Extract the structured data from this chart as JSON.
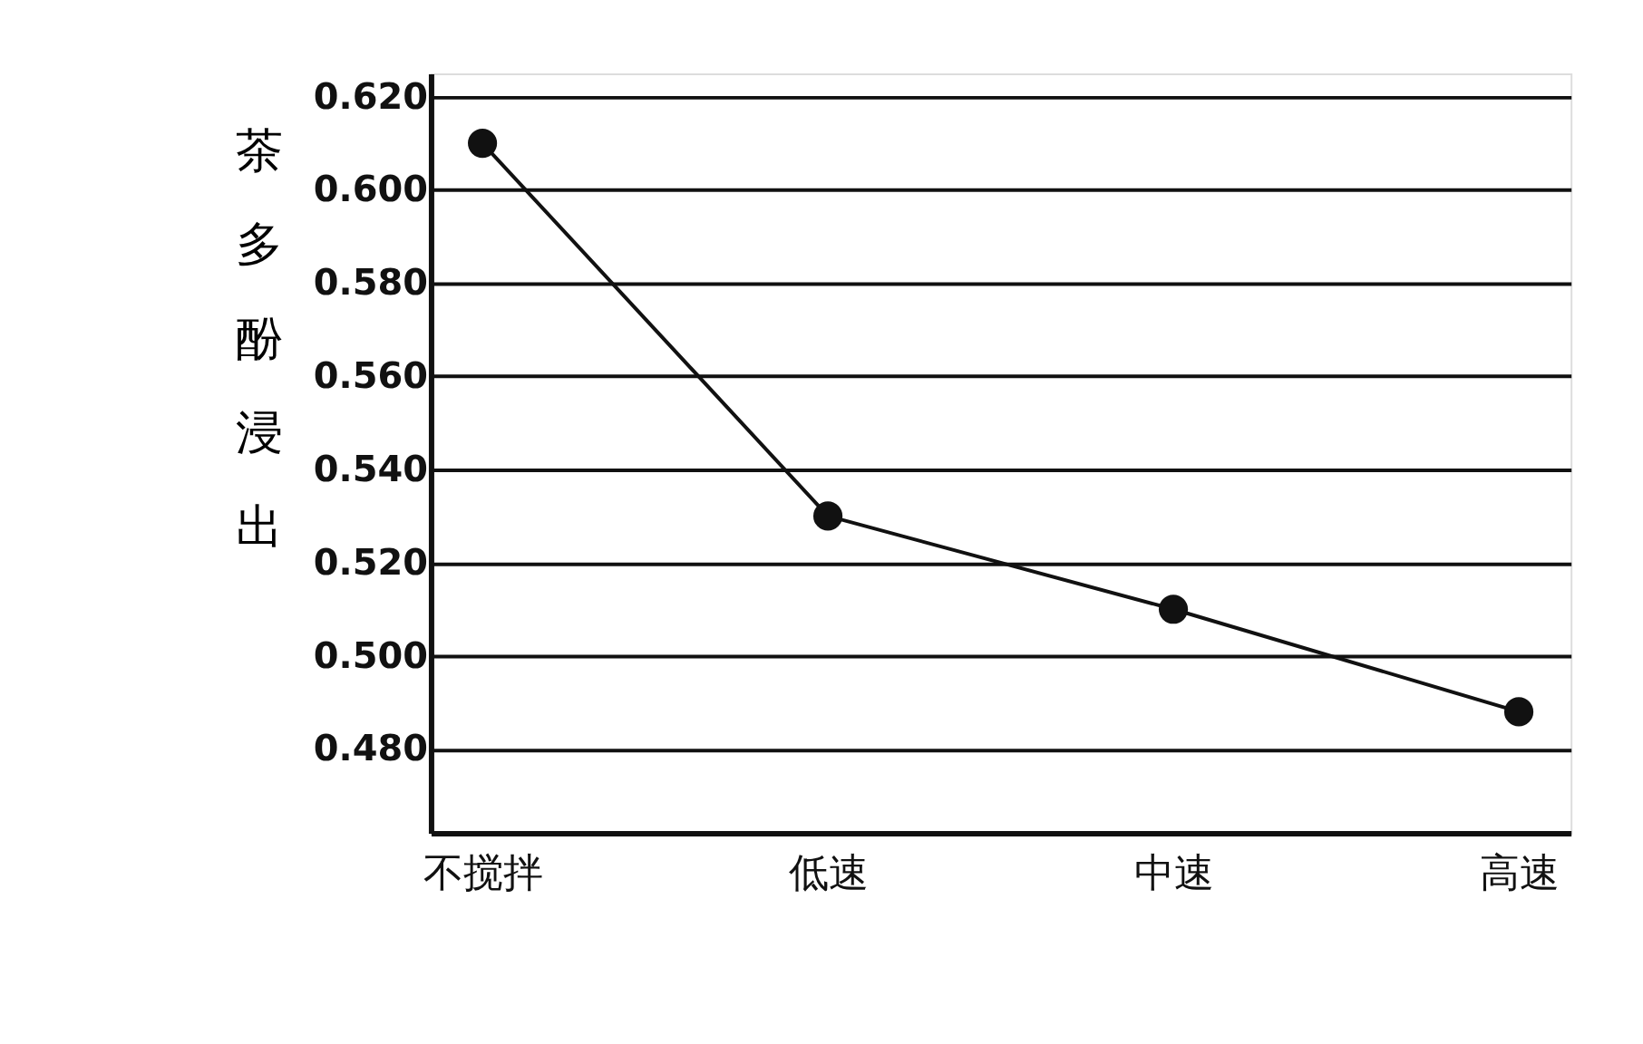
{
  "chart_data": {
    "type": "line",
    "ylabel": "茶多酚浸出",
    "categories": [
      "不搅拌",
      "低速",
      "中速",
      "高速"
    ],
    "series": [
      {
        "color": "#111111",
        "values": [
          0.61,
          0.53,
          0.51,
          0.488
        ]
      }
    ],
    "ylim": [
      0.462,
      0.625
    ],
    "yticks": [
      {
        "value": 0.48,
        "label": "0.480"
      },
      {
        "value": 0.5,
        "label": "0.500"
      },
      {
        "value": 0.52,
        "label": "0.520"
      },
      {
        "value": 0.54,
        "label": "0.540"
      },
      {
        "value": 0.56,
        "label": "0.560"
      },
      {
        "value": 0.58,
        "label": "0.580"
      },
      {
        "value": 0.6,
        "label": "0.600"
      },
      {
        "value": 0.62,
        "label": "0.620"
      }
    ],
    "grid": "y",
    "marker": "circle",
    "line_style": "solid",
    "legend": false
  }
}
